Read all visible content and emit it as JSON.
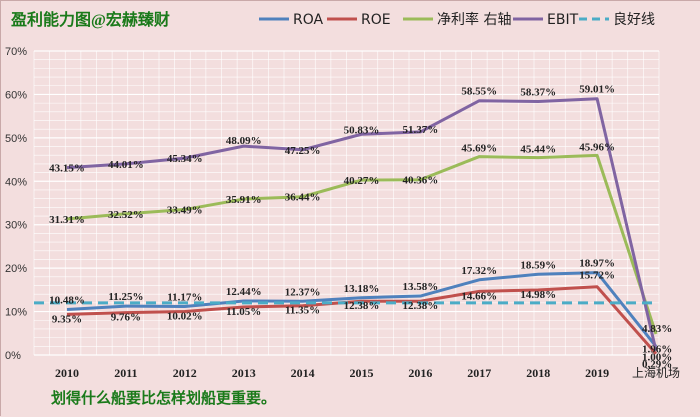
{
  "chart_data": {
    "type": "line",
    "title": "盈利能力图@宏赫臻财",
    "footer": "划得什么船要比怎样划船更重要。",
    "categories": [
      "2010",
      "2011",
      "2012",
      "2013",
      "2014",
      "2015",
      "2016",
      "2017",
      "2018",
      "2019",
      "上海机场"
    ],
    "ylim": [
      0,
      70
    ],
    "yticks": [
      "0%",
      "10%",
      "20%",
      "30%",
      "40%",
      "50%",
      "60%",
      "70%"
    ],
    "ytick_values": [
      0,
      10,
      20,
      30,
      40,
      50,
      60,
      70
    ],
    "grid": true,
    "legend_position": "top-right",
    "series": [
      {
        "name": "ROA",
        "color": "#4f81bd",
        "style": "solid",
        "values": [
          10.48,
          11.25,
          11.17,
          12.44,
          12.37,
          13.18,
          13.58,
          17.32,
          18.59,
          18.97,
          1.96
        ],
        "labels": [
          "10.48%",
          "11.25%",
          "11.17%",
          "12.44%",
          "12.37%",
          "13.18%",
          "13.58%",
          "17.32%",
          "18.59%",
          "18.97%",
          "1.96%"
        ]
      },
      {
        "name": "ROE",
        "color": "#c0504d",
        "style": "solid",
        "values": [
          9.35,
          9.76,
          10.02,
          11.05,
          11.35,
          12.38,
          12.38,
          14.66,
          14.98,
          15.72,
          0.29
        ],
        "labels": [
          "9.35%",
          "9.76%",
          "10.02%",
          "11.05%",
          "11.35%",
          "12.38%",
          "12.38%",
          "14.66%",
          "14.98%",
          "15.72%",
          "0.29%"
        ]
      },
      {
        "name": "净利率 右轴",
        "color": "#9bbb59",
        "style": "solid",
        "values": [
          31.31,
          32.52,
          33.49,
          35.91,
          36.44,
          40.27,
          40.36,
          45.69,
          45.44,
          45.96,
          4.83
        ],
        "labels": [
          "31.31%",
          "32.52%",
          "33.49%",
          "35.91%",
          "36.44%",
          "40.27%",
          "40.36%",
          "45.69%",
          "45.44%",
          "45.96%",
          "4.83%"
        ]
      },
      {
        "name": "EBIT",
        "color": "#8064a2",
        "style": "solid",
        "values": [
          43.15,
          44.01,
          45.34,
          48.09,
          47.25,
          50.83,
          51.37,
          58.55,
          58.37,
          59.01,
          1.0
        ],
        "labels": [
          "43.15%",
          "44.01%",
          "45.34%",
          "48.09%",
          "47.25%",
          "50.83%",
          "51.37%",
          "58.55%",
          "58.37%",
          "59.01%",
          "1.00%"
        ]
      },
      {
        "name": "良好线",
        "color": "#4bacc6",
        "style": "dashed",
        "values": [
          12,
          12,
          12,
          12,
          12,
          12,
          12,
          12,
          12,
          12,
          12
        ],
        "labels": []
      }
    ]
  }
}
